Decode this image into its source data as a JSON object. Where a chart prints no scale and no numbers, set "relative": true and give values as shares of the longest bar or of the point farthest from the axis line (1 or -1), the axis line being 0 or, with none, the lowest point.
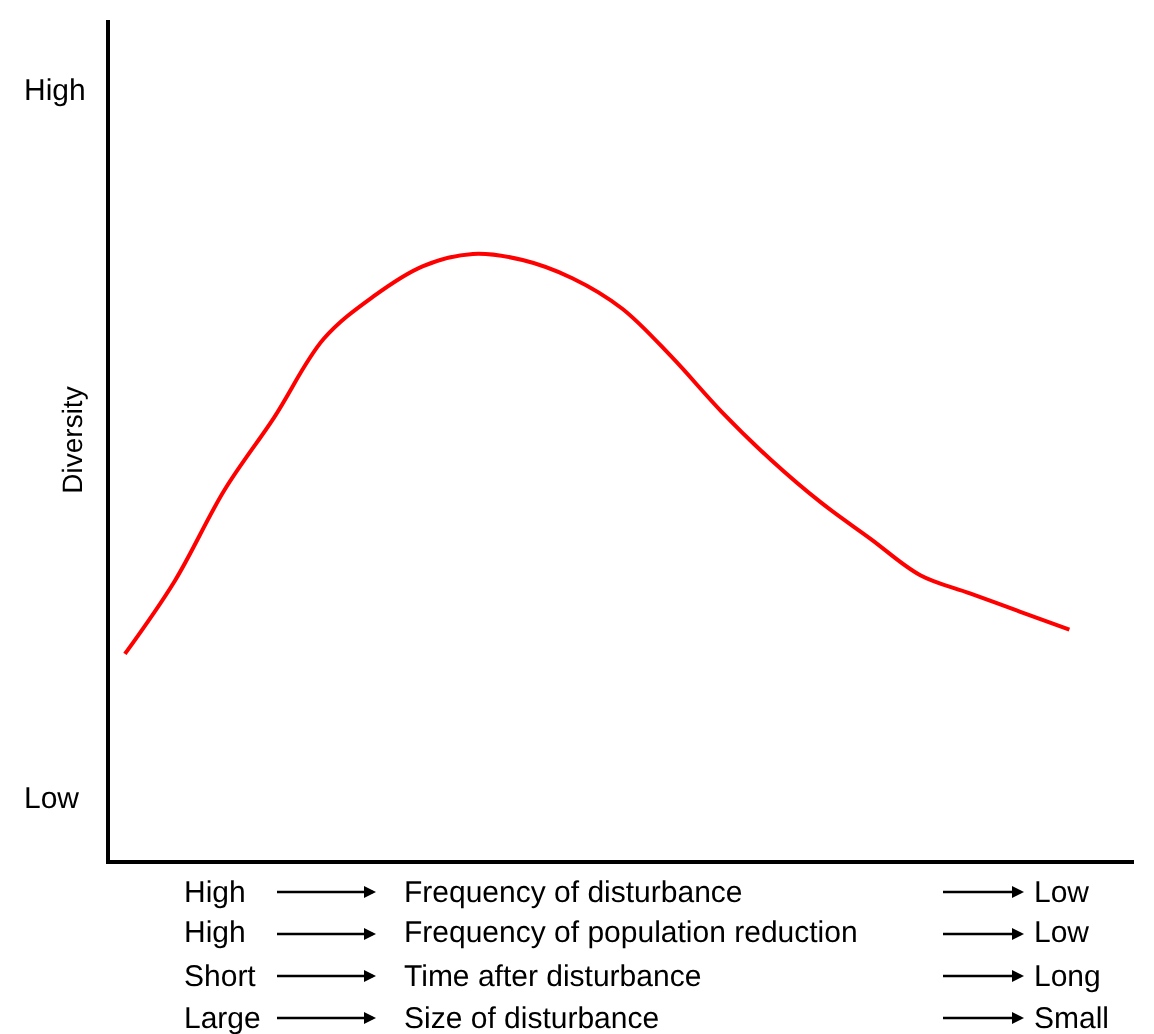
{
  "chart_data": {
    "type": "line",
    "relative": true,
    "ylabel": "Diversity",
    "marker": "none",
    "line_style": "solid",
    "legend": false,
    "categories": [
      null,
      null,
      null,
      null,
      null,
      null,
      null,
      null,
      null,
      null,
      null,
      null,
      null,
      null,
      null,
      null,
      null,
      null,
      null,
      null
    ],
    "series": [
      {
        "color": "#ff0000",
        "values": [
          0.34,
          0.46,
          0.61,
          0.73,
          0.86,
          0.93,
          0.98,
          1,
          0.99,
          0.96,
          0.91,
          0.83,
          0.74,
          0.66,
          0.59,
          0.53,
          0.47,
          0.44,
          0.41,
          0.38
        ]
      }
    ],
    "annotations": [
      "High",
      "Low",
      "High",
      "Frequency of disturbance",
      "Low",
      "High",
      "Frequency of population reduction",
      "Low",
      "Short",
      "Time after disturbance",
      "Long",
      "Large",
      "Size of disturbance",
      "Small"
    ]
  }
}
